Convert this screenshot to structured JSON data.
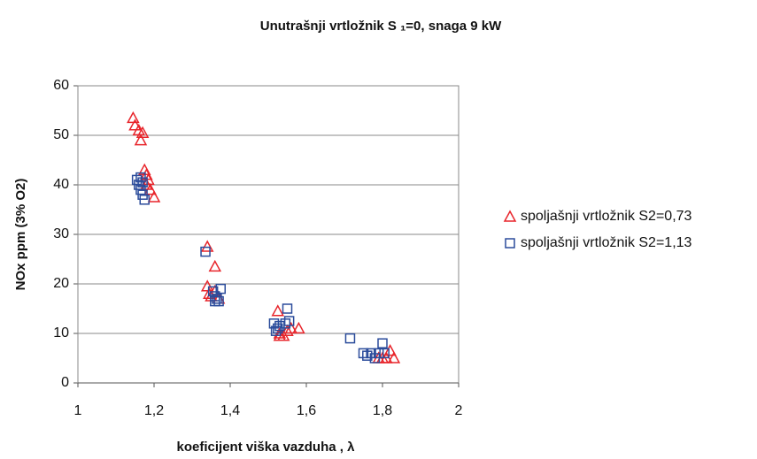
{
  "chart_data": {
    "type": "scatter",
    "title": "Unutrašnji vrtložnik S ₁=0, snaga 9 kW",
    "xlabel": "koeficijent viška vazduha , λ",
    "ylabel": "NOx ppm (3% O2)",
    "xlim": [
      1,
      2
    ],
    "xticks": [
      1,
      {
        "value": 1.2,
        "label": "1,2"
      },
      {
        "value": 1.4,
        "label": "1,4"
      },
      {
        "value": 1.6,
        "label": "1,6"
      },
      {
        "value": 1.8,
        "label": "1,8"
      },
      2
    ],
    "ylim": [
      0,
      60
    ],
    "yticks": [
      0,
      10,
      20,
      30,
      40,
      50,
      60
    ],
    "grid": true,
    "legend": "right",
    "series": [
      {
        "name": "spoljašnji vrtložnik S2=0,73",
        "color": "#e8252b",
        "marker": "triangle",
        "x": [
          1.145,
          1.15,
          1.16,
          1.17,
          1.165,
          1.175,
          1.18,
          1.185,
          1.19,
          1.2,
          1.18,
          1.34,
          1.36,
          1.34,
          1.345,
          1.35,
          1.36,
          1.37,
          1.525,
          1.53,
          1.54,
          1.55,
          1.56,
          1.58,
          1.53,
          1.8,
          1.81,
          1.82,
          1.79,
          1.83
        ],
        "values": [
          53.5,
          52,
          51,
          50.5,
          49,
          43,
          42,
          41,
          39,
          37.5,
          40,
          27.5,
          23.5,
          19.5,
          18,
          17.5,
          18.5,
          17,
          14.5,
          10,
          9.5,
          10.5,
          11,
          11,
          9.5,
          5,
          5,
          6.5,
          5,
          5
        ]
      },
      {
        "name": "spoljašnji vrtložnik S2=1,13",
        "color": "#2b4c9b",
        "marker": "square",
        "x": [
          1.155,
          1.16,
          1.165,
          1.17,
          1.175,
          1.165,
          1.17,
          1.335,
          1.355,
          1.36,
          1.365,
          1.37,
          1.375,
          1.36,
          1.515,
          1.525,
          1.53,
          1.545,
          1.55,
          1.555,
          1.52,
          1.715,
          1.75,
          1.76,
          1.77,
          1.78,
          1.79,
          1.8,
          1.805
        ],
        "values": [
          41,
          40,
          39,
          38,
          37,
          41.5,
          40.5,
          26.5,
          18.5,
          17.5,
          17,
          16.5,
          19,
          16.5,
          12,
          11,
          11.5,
          12,
          15,
          12.5,
          10.5,
          9,
          6,
          5.5,
          6,
          5,
          6,
          8,
          6
        ]
      }
    ]
  }
}
